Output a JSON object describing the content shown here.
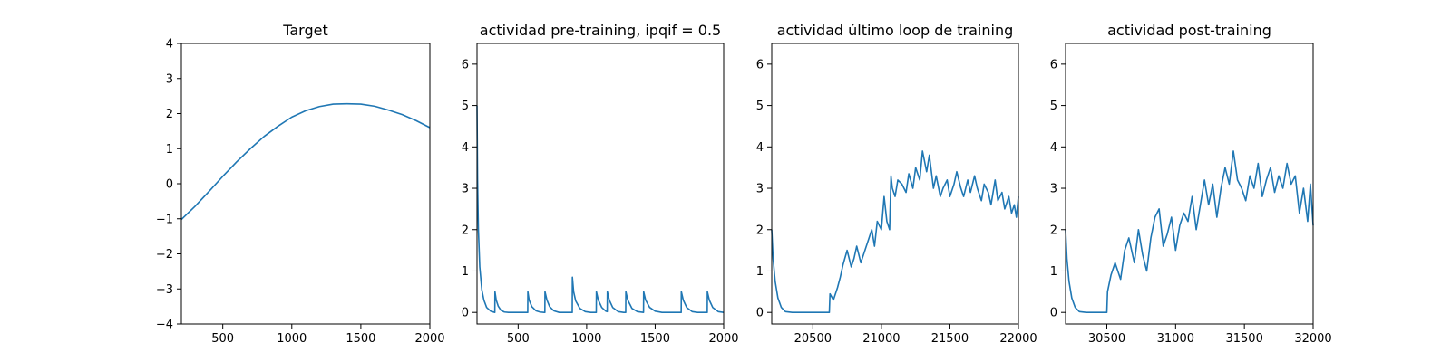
{
  "chart_data": [
    {
      "type": "line",
      "title": "Target",
      "xlim": [
        200,
        2000
      ],
      "ylim": [
        -4,
        4
      ],
      "xticks": [
        500,
        1000,
        1500,
        2000
      ],
      "xtick_labels": [
        "500",
        "1000",
        "1500",
        "2000"
      ],
      "yticks": [
        -4,
        -3,
        -2,
        -1,
        0,
        1,
        2,
        3,
        4
      ],
      "ytick_labels": [
        "−4",
        "−3",
        "−2",
        "−1",
        "0",
        "1",
        "2",
        "3",
        "4"
      ],
      "color": "#1f77b4",
      "series": [
        {
          "x": [
            200,
            300,
            400,
            500,
            600,
            700,
            800,
            900,
            1000,
            1100,
            1200,
            1300,
            1400,
            1500,
            1600,
            1700,
            1800,
            1900,
            2000
          ],
          "values": [
            -1.02,
            -0.64,
            -0.22,
            0.21,
            0.62,
            1.0,
            1.35,
            1.64,
            1.9,
            2.08,
            2.2,
            2.27,
            2.28,
            2.27,
            2.21,
            2.1,
            1.97,
            1.8,
            1.6
          ]
        }
      ]
    },
    {
      "type": "line",
      "title": "actividad pre-training, ipqif = 0.5",
      "xlim": [
        200,
        2000
      ],
      "ylim": [
        -0.28,
        6.5
      ],
      "xticks": [
        500,
        1000,
        1500,
        2000
      ],
      "xtick_labels": [
        "500",
        "1000",
        "1500",
        "2000"
      ],
      "yticks": [
        0,
        1,
        2,
        3,
        4,
        5,
        6
      ],
      "ytick_labels": [
        "0",
        "1",
        "2",
        "3",
        "4",
        "5",
        "6"
      ],
      "color": "#1f77b4",
      "series": [
        {
          "x": [
            200,
            204,
            210,
            220,
            235,
            250,
            270,
            300,
            330,
            331,
            340,
            355,
            375,
            400,
            430,
            470,
            520,
            570,
            571,
            580,
            600,
            630,
            660,
            690,
            695,
            696,
            710,
            730,
            760,
            800,
            850,
            895,
            896,
            905,
            920,
            950,
            990,
            1030,
            1070,
            1071,
            1085,
            1110,
            1140,
            1150,
            1151,
            1165,
            1190,
            1230,
            1270,
            1285,
            1286,
            1300,
            1330,
            1370,
            1415,
            1416,
            1430,
            1460,
            1500,
            1550,
            1600,
            1650,
            1690,
            1691,
            1705,
            1730,
            1770,
            1810,
            1850,
            1880,
            1881,
            1895,
            1920,
            1960,
            2000
          ],
          "values": [
            5.0,
            3.2,
            2.0,
            1.1,
            0.55,
            0.3,
            0.12,
            0.03,
            0.0,
            0.5,
            0.3,
            0.15,
            0.05,
            0.01,
            0.0,
            0.0,
            0.0,
            0.0,
            0.5,
            0.3,
            0.14,
            0.04,
            0.01,
            0.0,
            0.0,
            0.5,
            0.3,
            0.14,
            0.04,
            0.0,
            0.0,
            0.0,
            0.85,
            0.5,
            0.28,
            0.1,
            0.02,
            0.0,
            0.0,
            0.5,
            0.3,
            0.12,
            0.03,
            0.02,
            0.5,
            0.3,
            0.12,
            0.02,
            0.0,
            0.0,
            0.5,
            0.3,
            0.1,
            0.02,
            0.0,
            0.5,
            0.3,
            0.12,
            0.03,
            0.0,
            0.0,
            0.0,
            0.0,
            0.5,
            0.3,
            0.12,
            0.02,
            0.0,
            0.0,
            0.0,
            0.5,
            0.3,
            0.12,
            0.02,
            0.0
          ]
        }
      ]
    },
    {
      "type": "line",
      "title": "actividad último loop de training",
      "xlim": [
        20200,
        22000
      ],
      "ylim": [
        -0.28,
        6.5
      ],
      "xticks": [
        20500,
        21000,
        21500,
        22000
      ],
      "xtick_labels": [
        "20500",
        "21000",
        "21500",
        "22000"
      ],
      "yticks": [
        0,
        1,
        2,
        3,
        4,
        5,
        6
      ],
      "ytick_labels": [
        "0",
        "1",
        "2",
        "3",
        "4",
        "5",
        "6"
      ],
      "color": "#1f77b4",
      "series": [
        {
          "x": [
            20200,
            20210,
            20225,
            20245,
            20270,
            20300,
            20350,
            20400,
            20450,
            20500,
            20550,
            20600,
            20620,
            20625,
            20650,
            20680,
            20700,
            20720,
            20750,
            20780,
            20800,
            20820,
            20850,
            20880,
            20900,
            20930,
            20950,
            20970,
            21000,
            21020,
            21040,
            21060,
            21070,
            21080,
            21100,
            21120,
            21150,
            21180,
            21200,
            21230,
            21250,
            21280,
            21300,
            21330,
            21350,
            21380,
            21400,
            21430,
            21450,
            21480,
            21500,
            21530,
            21550,
            21580,
            21600,
            21630,
            21650,
            21680,
            21700,
            21730,
            21750,
            21780,
            21800,
            21830,
            21850,
            21880,
            21900,
            21930,
            21950,
            21970,
            21985,
            22000
          ],
          "values": [
            2.0,
            1.3,
            0.75,
            0.35,
            0.12,
            0.02,
            0.0,
            0.0,
            0.0,
            0.0,
            0.0,
            0.0,
            0.0,
            0.45,
            0.3,
            0.6,
            0.85,
            1.15,
            1.5,
            1.1,
            1.3,
            1.6,
            1.2,
            1.5,
            1.7,
            2.0,
            1.6,
            2.2,
            2.0,
            2.8,
            2.2,
            2.0,
            3.3,
            3.0,
            2.8,
            3.2,
            3.1,
            2.9,
            3.35,
            3.0,
            3.5,
            3.2,
            3.9,
            3.4,
            3.8,
            3.0,
            3.3,
            2.8,
            3.0,
            3.2,
            2.8,
            3.1,
            3.4,
            3.0,
            2.8,
            3.2,
            2.9,
            3.3,
            3.0,
            2.7,
            3.1,
            2.9,
            2.6,
            3.2,
            2.7,
            2.9,
            2.5,
            2.8,
            2.4,
            2.6,
            2.3,
            2.8
          ]
        }
      ]
    },
    {
      "type": "line",
      "title": "actividad post-training",
      "xlim": [
        30200,
        32000
      ],
      "ylim": [
        -0.28,
        6.5
      ],
      "xticks": [
        30500,
        31000,
        31500,
        32000
      ],
      "xtick_labels": [
        "30500",
        "31000",
        "31500",
        "32000"
      ],
      "yticks": [
        0,
        1,
        2,
        3,
        4,
        5,
        6
      ],
      "ytick_labels": [
        "0",
        "1",
        "2",
        "3",
        "4",
        "5",
        "6"
      ],
      "color": "#1f77b4",
      "series": [
        {
          "x": [
            30200,
            30210,
            30225,
            30245,
            30270,
            30300,
            30350,
            30400,
            30450,
            30500,
            30505,
            30530,
            30560,
            30600,
            30630,
            30660,
            30700,
            30730,
            30760,
            30790,
            30820,
            30850,
            30880,
            30910,
            30940,
            30970,
            31000,
            31030,
            31060,
            31090,
            31120,
            31150,
            31180,
            31210,
            31240,
            31270,
            31300,
            31330,
            31360,
            31390,
            31420,
            31450,
            31480,
            31510,
            31540,
            31570,
            31600,
            31630,
            31660,
            31690,
            31720,
            31750,
            31780,
            31810,
            31840,
            31870,
            31900,
            31930,
            31960,
            31980,
            32000
          ],
          "values": [
            2.0,
            1.3,
            0.75,
            0.35,
            0.12,
            0.02,
            0.0,
            0.0,
            0.0,
            0.0,
            0.5,
            0.9,
            1.2,
            0.8,
            1.5,
            1.8,
            1.2,
            2.0,
            1.4,
            1.0,
            1.8,
            2.3,
            2.5,
            1.6,
            1.9,
            2.3,
            1.5,
            2.1,
            2.4,
            2.2,
            2.8,
            2.0,
            2.6,
            3.2,
            2.6,
            3.1,
            2.3,
            3.0,
            3.5,
            3.1,
            3.9,
            3.2,
            3.0,
            2.7,
            3.3,
            3.0,
            3.6,
            2.8,
            3.2,
            3.5,
            2.9,
            3.3,
            3.0,
            3.6,
            3.1,
            3.3,
            2.4,
            3.0,
            2.2,
            3.1,
            2.1
          ]
        }
      ]
    }
  ]
}
